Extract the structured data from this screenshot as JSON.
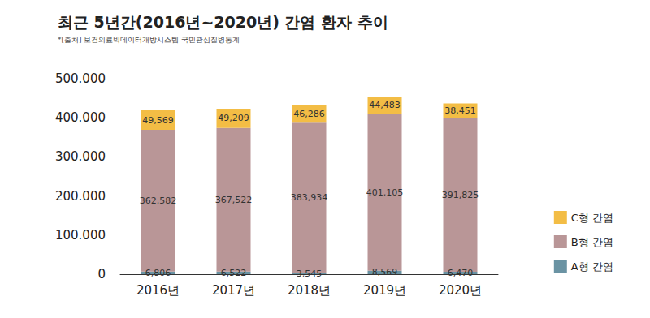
{
  "chart_data": {
    "type": "bar",
    "title": "최근 5년간(2016년~2020년) 간염 환자 추이",
    "subtitle": "*[출처] 보건의료빅데이터개방시스템 국민관심질병통계",
    "categories": [
      "2016년",
      "2017년",
      "2018년",
      "2019년",
      "2020년"
    ],
    "series": [
      {
        "name": "A형 간염",
        "color": "#6a93a3",
        "values": [
          6806,
          6522,
          3545,
          8569,
          6470
        ],
        "value_labels": [
          "6,806",
          "6,522",
          "3,545",
          "8,569",
          "6,470"
        ]
      },
      {
        "name": "B형 간염",
        "color": "#b99697",
        "values": [
          362582,
          367522,
          383934,
          401105,
          391825
        ],
        "value_labels": [
          "362,582",
          "367,522",
          "383,934",
          "401,105",
          "391,825"
        ]
      },
      {
        "name": "C형 간염",
        "color": "#f3bd45",
        "values": [
          49569,
          49209,
          46286,
          44483,
          38451
        ],
        "value_labels": [
          "49,569",
          "49,209",
          "46,286",
          "44,483",
          "38,451"
        ]
      }
    ],
    "ylim": [
      0,
      500000
    ],
    "yticks": [
      {
        "value": 0,
        "label": "0"
      },
      {
        "value": 100000,
        "label": "100.000"
      },
      {
        "value": 200000,
        "label": "200.000"
      },
      {
        "value": 300000,
        "label": "300.000"
      },
      {
        "value": 400000,
        "label": "400.000"
      },
      {
        "value": 500000,
        "label": "500.000"
      }
    ],
    "stacked": true,
    "data_labels": true,
    "legend": "right",
    "grid": false
  }
}
